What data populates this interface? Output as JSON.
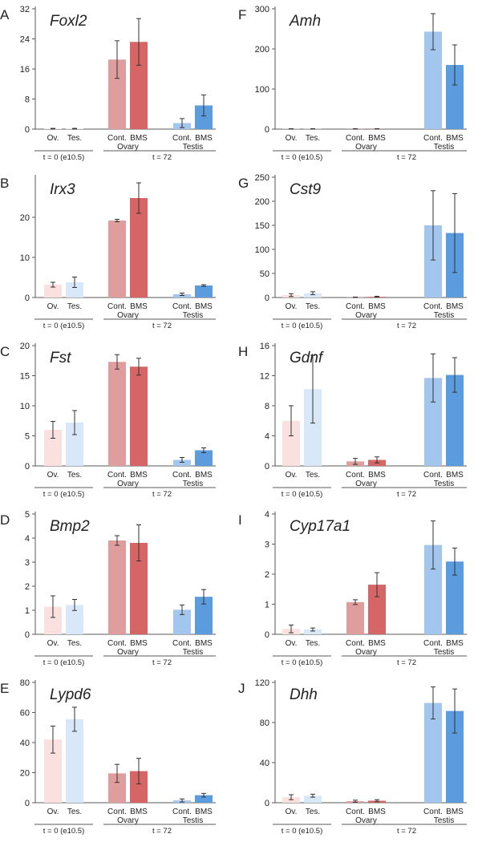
{
  "colors": {
    "ov_t0": "#fbe0e0",
    "tes_t0": "#d9e8f8",
    "ovary_cont": "#e09d9d",
    "ovary_bms": "#d66565",
    "testis_cont": "#a3c6ee",
    "testis_bms": "#5b9cdf",
    "axis": "#595959",
    "error_bar": "#333333"
  },
  "shared_labels": {
    "categories": [
      "Ov.",
      "Tes.",
      "Cont.",
      "BMS",
      "Cont.",
      "BMS"
    ],
    "subgroups": [
      "Ovary",
      "Testis"
    ],
    "groups": [
      "t = 0 (e10.5)",
      "t = 72"
    ]
  },
  "chart_data": [
    {
      "panel": "A",
      "title": "Foxl2",
      "type": "bar",
      "ylim": [
        0,
        32
      ],
      "yticks": [
        "0",
        "8",
        "16",
        "24",
        "32"
      ],
      "values": [
        0.1,
        0.1,
        18.5,
        23.2,
        1.6,
        6.3
      ],
      "errors": [
        0.1,
        0.1,
        5.0,
        6.2,
        1.2,
        2.8
      ]
    },
    {
      "panel": "F",
      "title": "Amh",
      "type": "bar",
      "ylim": [
        0,
        300
      ],
      "yticks": [
        "0",
        "100",
        "200",
        "300"
      ],
      "values": [
        0.5,
        0.5,
        0.5,
        0.5,
        243,
        160
      ],
      "errors": [
        0.5,
        0.5,
        0.5,
        0.5,
        45,
        50
      ]
    },
    {
      "panel": "B",
      "title": "Irx3",
      "type": "bar",
      "ylim": [
        0,
        30
      ],
      "yticks": [
        "0",
        "10",
        "20"
      ],
      "values": [
        3.2,
        3.8,
        19.2,
        24.8,
        0.8,
        3.0
      ],
      "errors": [
        0.6,
        1.3,
        0.3,
        3.8,
        0.3,
        0.2
      ]
    },
    {
      "panel": "G",
      "title": "Cst9",
      "type": "bar",
      "ylim": [
        0,
        250
      ],
      "yticks": [
        "0",
        "50",
        "100",
        "150",
        "200",
        "250"
      ],
      "values": [
        5,
        9,
        0.5,
        1.5,
        150,
        134
      ],
      "errors": [
        3,
        3,
        0.5,
        1,
        72,
        82
      ]
    },
    {
      "panel": "C",
      "title": "Fst",
      "type": "bar",
      "ylim": [
        0,
        20
      ],
      "yticks": [
        "0",
        "5",
        "10",
        "15",
        "20"
      ],
      "values": [
        6.0,
        7.2,
        17.3,
        16.5,
        1.0,
        2.6
      ],
      "errors": [
        1.4,
        2.0,
        1.2,
        1.4,
        0.4,
        0.4
      ]
    },
    {
      "panel": "H",
      "title": "Gdnf",
      "type": "bar",
      "ylim": [
        0,
        16
      ],
      "yticks": [
        "0",
        "4",
        "8",
        "12",
        "16"
      ],
      "values": [
        6.0,
        10.2,
        0.6,
        0.8,
        11.7,
        12.1
      ],
      "errors": [
        2.0,
        4.5,
        0.4,
        0.4,
        3.2,
        2.3
      ]
    },
    {
      "panel": "D",
      "title": "Bmp2",
      "type": "bar",
      "ylim": [
        0,
        5
      ],
      "yticks": [
        "0",
        "1",
        "2",
        "3",
        "4",
        "5"
      ],
      "values": [
        1.15,
        1.22,
        3.9,
        3.8,
        1.02,
        1.56
      ],
      "errors": [
        0.45,
        0.23,
        0.2,
        0.75,
        0.2,
        0.3
      ]
    },
    {
      "panel": "I",
      "title": "Cyp17a1",
      "type": "bar",
      "ylim": [
        0,
        4
      ],
      "yticks": [
        "0",
        "1",
        "2",
        "3",
        "4"
      ],
      "values": [
        0.18,
        0.16,
        1.07,
        1.65,
        2.97,
        2.42
      ],
      "errors": [
        0.13,
        0.05,
        0.08,
        0.4,
        0.8,
        0.45
      ]
    },
    {
      "panel": "E",
      "title": "Lypd6",
      "type": "bar",
      "ylim": [
        0,
        80
      ],
      "yticks": [
        "0",
        "20",
        "40",
        "60",
        "80"
      ],
      "values": [
        42,
        55.5,
        19.5,
        21,
        1.5,
        5
      ],
      "errors": [
        9,
        8,
        6,
        8.5,
        1,
        1.2
      ]
    },
    {
      "panel": "J",
      "title": "Dhh",
      "type": "bar",
      "ylim": [
        0,
        120
      ],
      "yticks": [
        "0",
        "40",
        "80",
        "120"
      ],
      "values": [
        5.5,
        7,
        1.5,
        2,
        99.5,
        91.5
      ],
      "errors": [
        2.5,
        1.5,
        1,
        1,
        16,
        22
      ]
    }
  ]
}
